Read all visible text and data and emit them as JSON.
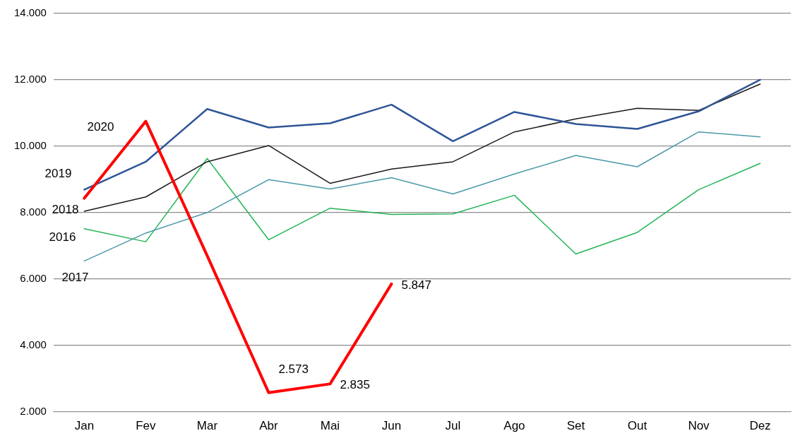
{
  "chart_data": {
    "type": "line",
    "categories": [
      "Jan",
      "Fev",
      "Mar",
      "Abr",
      "Mai",
      "Jun",
      "Jul",
      "Ago",
      "Set",
      "Out",
      "Nov",
      "Dez"
    ],
    "series": [
      {
        "name": "2016",
        "color": "#22b455",
        "values": [
          7510,
          7120,
          9630,
          7180,
          8130,
          7940,
          7960,
          8520,
          6750,
          7400,
          8690,
          9480
        ]
      },
      {
        "name": "2017",
        "color": "#4a98a8",
        "values": [
          6540,
          7380,
          8000,
          8990,
          8710,
          9050,
          8560,
          9160,
          9720,
          9380,
          10430,
          10280
        ]
      },
      {
        "name": "2018",
        "color": "#1a1a1a",
        "values": [
          8040,
          8470,
          9530,
          10020,
          8880,
          9310,
          9530,
          10430,
          10820,
          11140,
          11080,
          11870
        ]
      },
      {
        "name": "2019",
        "color": "#2f5597",
        "values": [
          8690,
          9530,
          11120,
          10560,
          10690,
          11250,
          10150,
          11030,
          10670,
          10520,
          11050,
          12000
        ]
      },
      {
        "name": "2020",
        "color": "#ff0000",
        "values": [
          8430,
          10750,
          6700,
          2573,
          2835,
          5847,
          null,
          null,
          null,
          null,
          null,
          null
        ],
        "value_labels": [
          null,
          null,
          null,
          "2.573",
          "2.835",
          "5.847",
          null,
          null,
          null,
          null,
          null,
          null
        ]
      }
    ],
    "ylim": [
      2000,
      14000
    ],
    "yticks": [
      {
        "value": 2000,
        "label": "2.000"
      },
      {
        "value": 4000,
        "label": "4.000"
      },
      {
        "value": 6000,
        "label": "6.000"
      },
      {
        "value": 8000,
        "label": "8.000"
      },
      {
        "value": 10000,
        "label": "10.000"
      },
      {
        "value": 12000,
        "label": "12.000"
      },
      {
        "value": 14000,
        "label": "14.000"
      }
    ],
    "grid": "y",
    "legend": false,
    "marker": "none",
    "line_style": "solid"
  }
}
